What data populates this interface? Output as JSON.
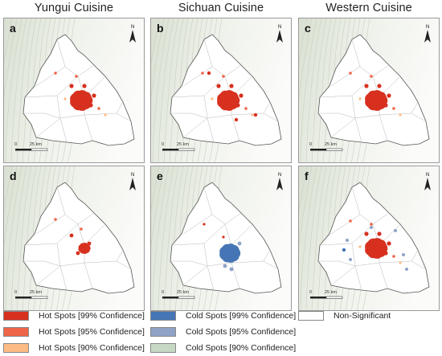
{
  "columns": [
    "Yungui Cuisine",
    "Sichuan Cuisine",
    "Western Cuisine"
  ],
  "panels": [
    {
      "letter": "a",
      "hot99": "big",
      "cold": "none"
    },
    {
      "letter": "b",
      "hot99": "big",
      "cold": "none"
    },
    {
      "letter": "c",
      "hot99": "big",
      "cold": "none"
    },
    {
      "letter": "d",
      "hot99": "small",
      "cold": "none"
    },
    {
      "letter": "e",
      "hot99": "none",
      "cold": "big"
    },
    {
      "letter": "f",
      "hot99": "big",
      "cold": "scatter"
    }
  ],
  "north_label": "N",
  "scale": {
    "zero": "0",
    "distance": "25 km"
  },
  "legend": [
    {
      "label": "Hot Spots [99% Confidence]",
      "color": "#d7301f"
    },
    {
      "label": "Hot Spots [95% Confidence]",
      "color": "#ef6548"
    },
    {
      "label": "Hot Spots [90% Confidence]",
      "color": "#fdbb84"
    },
    {
      "label": "Cold Spots [99% Confidence]",
      "color": "#4575b4"
    },
    {
      "label": "Cold Spots [95% Confidence]",
      "color": "#8fa3c8"
    },
    {
      "label": "Cold Spots [90% Confidence]",
      "color": "#c7d9c4"
    },
    {
      "label": "Non-Significant",
      "color": "#ffffff"
    }
  ]
}
